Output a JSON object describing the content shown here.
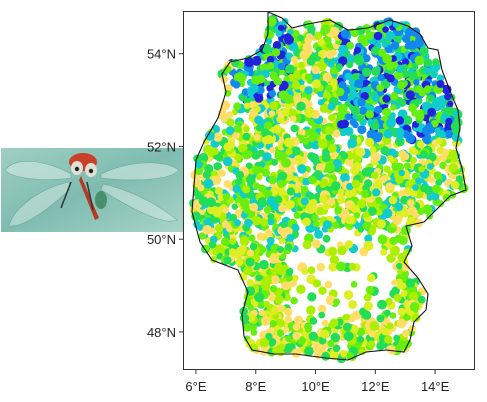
{
  "map": {
    "x_ticks": [
      {
        "value": 6,
        "label": "6°E"
      },
      {
        "value": 8,
        "label": "8°E"
      },
      {
        "value": 10,
        "label": "10°E"
      },
      {
        "value": 12,
        "label": "12°E"
      },
      {
        "value": 14,
        "label": "14°E"
      }
    ],
    "y_ticks": [
      {
        "value": 48,
        "label": "48°N"
      },
      {
        "value": 50,
        "label": "50°N"
      },
      {
        "value": 52,
        "label": "52°N"
      },
      {
        "value": 54,
        "label": "54°N"
      }
    ],
    "xlim": [
      5.6,
      15.3
    ],
    "ylim": [
      47.2,
      54.9
    ],
    "palette": [
      "#2222dd",
      "#1188ee",
      "#11cccc",
      "#22dd55",
      "#66ee11",
      "#aaee00",
      "#ddee22",
      "#ffdd66"
    ],
    "marker": "filled-circle",
    "photo_subject": "red-dragonfly-photo"
  }
}
